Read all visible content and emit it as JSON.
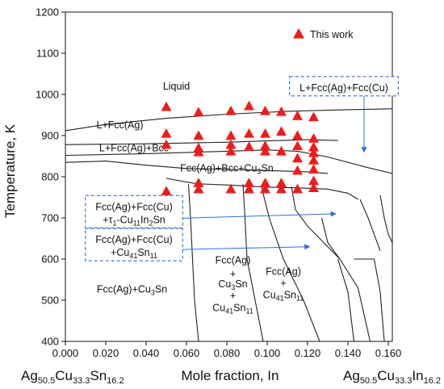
{
  "chart_data": {
    "type": "scatter",
    "title": "",
    "xlabel": "Mole fraction, In",
    "ylabel": "Temperature, K",
    "xlim": [
      0.0,
      0.162
    ],
    "ylim": [
      400,
      1200
    ],
    "x_ticks": [
      "0.000",
      "0.020",
      "0.040",
      "0.060",
      "0.080",
      "0.100",
      "0.120",
      "0.140",
      "0.160"
    ],
    "y_ticks": [
      "400",
      "500",
      "600",
      "700",
      "800",
      "900",
      "1000",
      "1100",
      "1200"
    ],
    "end_labels": {
      "left": {
        "a": "Ag",
        "a_sub": "50.5",
        "b": "Cu",
        "b_sub": "33.3",
        "c": "Sn",
        "c_sub": "16.2"
      },
      "right": {
        "a": "Ag",
        "a_sub": "50.5",
        "b": "Cu",
        "b_sub": "33.3",
        "c": "In",
        "c_sub": "16.2"
      }
    },
    "legend": {
      "label": "This work",
      "marker": "red-triangle",
      "position": "top-right"
    },
    "series": [
      {
        "name": "This work",
        "color": "#ee1c1c",
        "points": [
          [
            0.05,
            970
          ],
          [
            0.05,
            905
          ],
          [
            0.05,
            878
          ],
          [
            0.05,
            765
          ],
          [
            0.066,
            957
          ],
          [
            0.066,
            900
          ],
          [
            0.066,
            870
          ],
          [
            0.066,
            860
          ],
          [
            0.066,
            785
          ],
          [
            0.066,
            770
          ],
          [
            0.082,
            960
          ],
          [
            0.082,
            900
          ],
          [
            0.082,
            878
          ],
          [
            0.082,
            862
          ],
          [
            0.082,
            770
          ],
          [
            0.091,
            972
          ],
          [
            0.091,
            905
          ],
          [
            0.091,
            873
          ],
          [
            0.091,
            785
          ],
          [
            0.091,
            770
          ],
          [
            0.099,
            960
          ],
          [
            0.099,
            905
          ],
          [
            0.099,
            875
          ],
          [
            0.099,
            862
          ],
          [
            0.099,
            785
          ],
          [
            0.099,
            770
          ],
          [
            0.107,
            958
          ],
          [
            0.107,
            910
          ],
          [
            0.107,
            862
          ],
          [
            0.107,
            785
          ],
          [
            0.107,
            770
          ],
          [
            0.115,
            948
          ],
          [
            0.115,
            900
          ],
          [
            0.115,
            875
          ],
          [
            0.115,
            845
          ],
          [
            0.115,
            815
          ],
          [
            0.115,
            770
          ],
          [
            0.123,
            945
          ],
          [
            0.123,
            893
          ],
          [
            0.123,
            872
          ],
          [
            0.123,
            858
          ],
          [
            0.123,
            840
          ],
          [
            0.123,
            818
          ],
          [
            0.123,
            790
          ],
          [
            0.123,
            773
          ]
        ]
      }
    ],
    "boundaries": [
      {
        "name": "liquidus",
        "points": [
          [
            0.0,
            912
          ],
          [
            0.02,
            927
          ],
          [
            0.05,
            942
          ],
          [
            0.08,
            952
          ],
          [
            0.11,
            959
          ],
          [
            0.14,
            963
          ],
          [
            0.162,
            965
          ]
        ]
      },
      {
        "name": "fcc-bcc-upper",
        "points": [
          [
            0.0,
            878
          ],
          [
            0.04,
            880
          ],
          [
            0.08,
            884
          ],
          [
            0.1,
            887
          ],
          [
            0.12,
            890
          ],
          [
            0.135,
            888
          ]
        ]
      },
      {
        "name": "fcc-bcc-lower",
        "points": [
          [
            0.0,
            852
          ],
          [
            0.04,
            856
          ],
          [
            0.08,
            862
          ],
          [
            0.1,
            865
          ],
          [
            0.115,
            862
          ],
          [
            0.13,
            848
          ],
          [
            0.15,
            822
          ],
          [
            0.162,
            808
          ]
        ]
      },
      {
        "name": "bcc-cu3sn",
        "points": [
          [
            0.0,
            835
          ],
          [
            0.02,
            838
          ],
          [
            0.04,
            828
          ],
          [
            0.06,
            820
          ],
          [
            0.08,
            818
          ],
          [
            0.1,
            815
          ],
          [
            0.12,
            812
          ],
          [
            0.13,
            808
          ]
        ]
      },
      {
        "name": "cu3sn-tau",
        "points": [
          [
            0.05,
            796
          ],
          [
            0.065,
            783
          ],
          [
            0.08,
            780
          ],
          [
            0.1,
            775
          ],
          [
            0.115,
            773
          ],
          [
            0.13,
            770
          ],
          [
            0.14,
            760
          ],
          [
            0.145,
            745
          ]
        ]
      },
      {
        "name": "v1",
        "points": [
          [
            0.061,
            782
          ],
          [
            0.062,
            700
          ],
          [
            0.063,
            600
          ],
          [
            0.064,
            500
          ],
          [
            0.066,
            400
          ]
        ]
      },
      {
        "name": "v2",
        "points": [
          [
            0.088,
            782
          ],
          [
            0.089,
            700
          ],
          [
            0.09,
            600
          ],
          [
            0.094,
            500
          ],
          [
            0.098,
            400
          ]
        ]
      },
      {
        "name": "v3",
        "points": [
          [
            0.097,
            778
          ],
          [
            0.101,
            700
          ],
          [
            0.108,
            600
          ],
          [
            0.118,
            500
          ],
          [
            0.126,
            400
          ]
        ]
      },
      {
        "name": "v4",
        "points": [
          [
            0.112,
            776
          ],
          [
            0.114,
            720
          ],
          [
            0.12,
            680
          ],
          [
            0.128,
            640
          ],
          [
            0.136,
            600
          ]
        ]
      },
      {
        "name": "v5",
        "points": [
          [
            0.127,
            700
          ],
          [
            0.13,
            640
          ],
          [
            0.136,
            600
          ],
          [
            0.145,
            530
          ],
          [
            0.151,
            400
          ]
        ]
      },
      {
        "name": "v6",
        "points": [
          [
            0.146,
            745
          ],
          [
            0.15,
            700
          ],
          [
            0.153,
            660
          ],
          [
            0.156,
            620
          ]
        ]
      },
      {
        "name": "v7",
        "points": [
          [
            0.156,
            755
          ],
          [
            0.158,
            700
          ],
          [
            0.16,
            660
          ],
          [
            0.162,
            640
          ]
        ]
      },
      {
        "name": "v8",
        "points": [
          [
            0.143,
            600
          ],
          [
            0.153,
            600
          ],
          [
            0.156,
            520
          ],
          [
            0.158,
            400
          ]
        ]
      },
      {
        "name": "v9",
        "points": [
          [
            0.135,
            600
          ],
          [
            0.14,
            520
          ],
          [
            0.143,
            400
          ]
        ]
      }
    ],
    "regions": [
      {
        "label": "Liquid",
        "x": 0.055,
        "y": 1012
      },
      {
        "label": "L+Fcc(Ag)",
        "x": 0.027,
        "y": 918
      },
      {
        "label": "L+Fcc(Ag)+Bcc",
        "x": 0.034,
        "y": 862
      },
      {
        "label": "Fcc(Ag)+Bcc+Cu3Sn",
        "x": 0.08,
        "y": 813
      },
      {
        "label": "Fcc(Ag)+Cu3Sn",
        "x": 0.033,
        "y": 519
      },
      {
        "label": "Fcc(Ag)",
        "x": 0.083,
        "y": 589
      },
      {
        "label": "+",
        "x": 0.083,
        "y": 556
      },
      {
        "label": "Cu3Sn",
        "x": 0.083,
        "y": 531
      },
      {
        "label": "+",
        "x": 0.083,
        "y": 503
      },
      {
        "label": "Cu41Sn11",
        "x": 0.083,
        "y": 474
      },
      {
        "label": "Fcc(Ag)",
        "x": 0.108,
        "y": 562
      },
      {
        "label": "+",
        "x": 0.108,
        "y": 533
      },
      {
        "label": "Cu41Sn11",
        "x": 0.108,
        "y": 505
      }
    ],
    "annotation_boxes": [
      {
        "lines": [
          "L+Fcc(Ag)+Fcc(Cu)"
        ],
        "x": 0.138,
        "y": 1020,
        "arrow_to": [
          0.148,
          860
        ]
      },
      {
        "lines": [
          "Fcc(Ag)+Fcc(Cu)",
          "+τ1-Cu11In2Sn"
        ],
        "x": 0.034,
        "y": 715,
        "arrow_to": [
          0.134,
          710
        ]
      },
      {
        "lines": [
          "Fcc(Ag)+Fcc(Cu)",
          "+Cu41Sn11"
        ],
        "x": 0.034,
        "y": 635,
        "arrow_to": [
          0.121,
          630
        ]
      }
    ],
    "grid": false
  }
}
